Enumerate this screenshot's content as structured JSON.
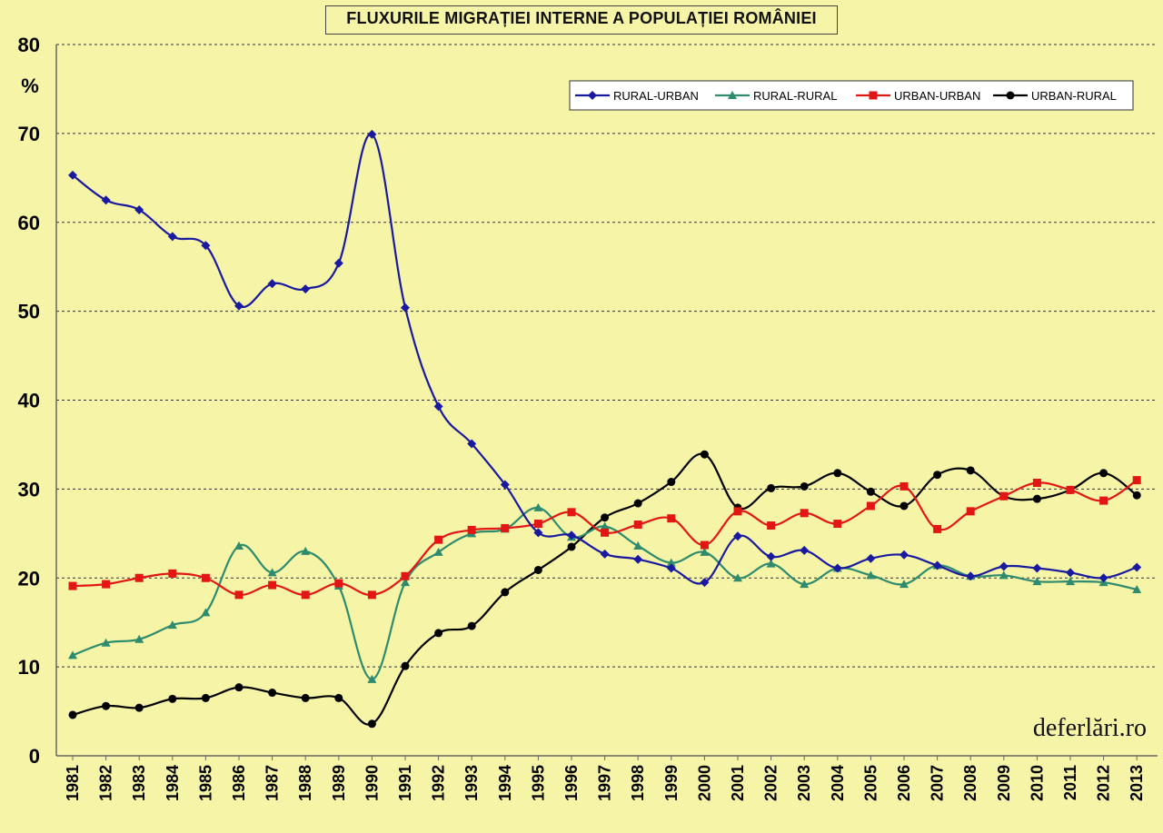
{
  "chart_data": {
    "type": "line",
    "title": "FLUXURILE MIGRAȚIEI INTERNE A POPULAȚIEI  ROMÂNIEI",
    "ylabel": "%",
    "xlabel": "",
    "ylim": [
      0,
      80
    ],
    "yticks": [
      0,
      10,
      20,
      30,
      40,
      50,
      60,
      70,
      80
    ],
    "grid": "horizontal dashed",
    "legend": "top-right",
    "categories": [
      "1981",
      "1982",
      "1983",
      "1984",
      "1985",
      "1986",
      "1987",
      "1988",
      "1989",
      "1990",
      "1991",
      "1992",
      "1993",
      "1994",
      "1995",
      "1996",
      "1997",
      "1998",
      "1999",
      "2000",
      "2001",
      "2002",
      "2003",
      "2004",
      "2005",
      "2006",
      "2007",
      "2008",
      "2009",
      "2010",
      "2011",
      "2012",
      "2013"
    ],
    "series": [
      {
        "name": "RURAL-URBAN",
        "color": "#1a1aa0",
        "marker": "diamond",
        "values": [
          65.3,
          62.5,
          61.4,
          58.4,
          57.4,
          50.6,
          53.1,
          52.5,
          55.4,
          69.9,
          50.4,
          39.3,
          35.1,
          30.5,
          25.1,
          24.8,
          22.7,
          22.1,
          21.1,
          19.5,
          24.7,
          22.4,
          23.1,
          21.1,
          22.2,
          22.6,
          21.4,
          20.2,
          21.3,
          21.1,
          20.6,
          20.0,
          21.2
        ]
      },
      {
        "name": "RURAL-RURAL",
        "color": "#2e8b6e",
        "marker": "triangle",
        "values": [
          11.3,
          12.7,
          13.1,
          14.7,
          16.1,
          23.6,
          20.6,
          23.0,
          19.1,
          8.6,
          19.5,
          22.9,
          25.0,
          25.5,
          27.9,
          24.6,
          25.8,
          23.6,
          21.7,
          22.9,
          20.0,
          21.6,
          19.3,
          21.1,
          20.3,
          19.3,
          21.4,
          20.2,
          20.3,
          19.6,
          19.6,
          19.5,
          18.7
        ]
      },
      {
        "name": "URBAN-URBAN",
        "color": "#e31616",
        "marker": "square",
        "values": [
          19.1,
          19.3,
          20.0,
          20.5,
          20.0,
          18.1,
          19.2,
          18.1,
          19.4,
          18.1,
          20.2,
          24.3,
          25.4,
          25.6,
          26.1,
          27.4,
          25.1,
          26.0,
          26.7,
          23.7,
          27.5,
          25.9,
          27.3,
          26.1,
          28.1,
          30.3,
          25.5,
          27.5,
          29.2,
          30.7,
          29.9,
          28.7,
          31.0
        ]
      },
      {
        "name": "URBAN-RURAL",
        "color": "#000000",
        "marker": "circle",
        "values": [
          4.6,
          5.6,
          5.4,
          6.4,
          6.5,
          7.7,
          7.1,
          6.5,
          6.5,
          3.6,
          10.1,
          13.8,
          14.6,
          18.4,
          20.9,
          23.5,
          26.8,
          28.4,
          30.8,
          33.9,
          27.9,
          30.1,
          30.3,
          31.8,
          29.7,
          28.1,
          31.6,
          32.1,
          29.2,
          28.9,
          29.9,
          31.8,
          29.3
        ]
      }
    ]
  },
  "watermark": "deferlări.ro"
}
